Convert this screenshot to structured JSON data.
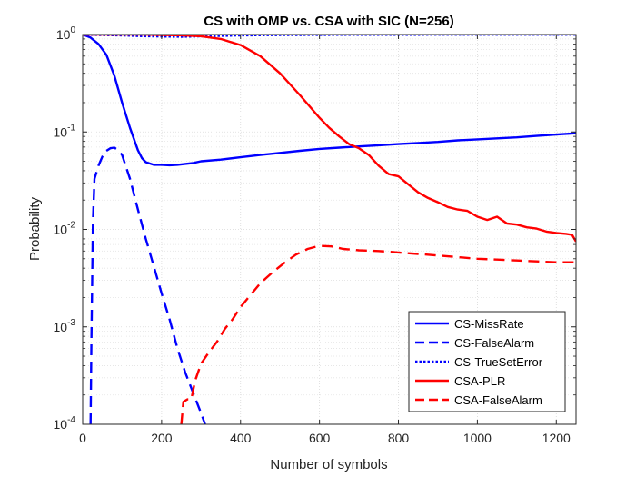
{
  "chart_data": {
    "type": "line",
    "title": "CS with OMP vs. CSA with SIC (N=256)",
    "xlabel": "Number of symbols",
    "ylabel": "Probability",
    "xlim": [
      0,
      1250
    ],
    "ylim": [
      0.0001,
      1
    ],
    "yscale": "log",
    "grid": true,
    "legend_position": "bottom-right",
    "x_ticks": [
      0,
      200,
      400,
      600,
      800,
      1000,
      1200
    ],
    "y_ticks": [
      {
        "value": 0.0001,
        "base": "10",
        "exp": "-4"
      },
      {
        "value": 0.001,
        "base": "10",
        "exp": "-3"
      },
      {
        "value": 0.01,
        "base": "10",
        "exp": "-2"
      },
      {
        "value": 0.1,
        "base": "10",
        "exp": "-1"
      },
      {
        "value": 1,
        "base": "10",
        "exp": "0"
      }
    ],
    "series": [
      {
        "name": "CS-MissRate",
        "color": "#0000ff",
        "style": "solid",
        "x": [
          0,
          20,
          40,
          60,
          80,
          100,
          120,
          140,
          150,
          160,
          180,
          200,
          220,
          240,
          260,
          280,
          300,
          350,
          400,
          450,
          500,
          550,
          600,
          650,
          700,
          750,
          800,
          850,
          900,
          950,
          1000,
          1050,
          1100,
          1150,
          1200,
          1250
        ],
        "y": [
          1.0,
          0.93,
          0.8,
          0.62,
          0.38,
          0.2,
          0.11,
          0.065,
          0.054,
          0.049,
          0.046,
          0.046,
          0.0455,
          0.046,
          0.047,
          0.048,
          0.05,
          0.052,
          0.055,
          0.058,
          0.061,
          0.064,
          0.067,
          0.069,
          0.071,
          0.073,
          0.075,
          0.077,
          0.079,
          0.082,
          0.084,
          0.086,
          0.088,
          0.091,
          0.094,
          0.097
        ]
      },
      {
        "name": "CS-FalseAlarm",
        "color": "#0000ff",
        "style": "dashed",
        "x": [
          20,
          22,
          26,
          30,
          40,
          50,
          60,
          70,
          80,
          90,
          100,
          120,
          140,
          160,
          180,
          200,
          220,
          240,
          260,
          280,
          300,
          310
        ],
        "y": [
          0.0001,
          0.0007,
          0.012,
          0.033,
          0.045,
          0.056,
          0.064,
          0.068,
          0.069,
          0.065,
          0.058,
          0.033,
          0.016,
          0.008,
          0.0042,
          0.0022,
          0.0012,
          0.0006,
          0.00034,
          0.00021,
          0.00013,
          0.0001
        ]
      },
      {
        "name": "CS-TrueSetError",
        "color": "#0000ff",
        "style": "dotted",
        "x": [
          0,
          50,
          100,
          150,
          200,
          250,
          300,
          350,
          400,
          450,
          500,
          600,
          700,
          800,
          900,
          1000,
          1100,
          1200,
          1250
        ],
        "y": [
          1.0,
          0.99,
          0.98,
          0.965,
          0.955,
          0.95,
          0.96,
          0.97,
          0.98,
          0.985,
          0.99,
          0.993,
          0.995,
          0.996,
          0.997,
          0.998,
          0.998,
          0.998,
          0.998
        ]
      },
      {
        "name": "CSA-PLR",
        "color": "#ff0000",
        "style": "solid",
        "x": [
          0,
          100,
          150,
          200,
          250,
          300,
          350,
          400,
          450,
          500,
          550,
          600,
          625,
          650,
          675,
          700,
          725,
          750,
          775,
          800,
          825,
          850,
          875,
          900,
          925,
          950,
          975,
          1000,
          1025,
          1050,
          1075,
          1100,
          1125,
          1150,
          1175,
          1200,
          1225,
          1240,
          1250
        ],
        "y": [
          1.0,
          1.0,
          1.0,
          0.99,
          0.98,
          0.96,
          0.9,
          0.78,
          0.6,
          0.4,
          0.24,
          0.14,
          0.11,
          0.09,
          0.075,
          0.068,
          0.058,
          0.045,
          0.037,
          0.035,
          0.029,
          0.024,
          0.021,
          0.019,
          0.017,
          0.016,
          0.0155,
          0.0135,
          0.0125,
          0.0135,
          0.0115,
          0.0112,
          0.0105,
          0.0102,
          0.0095,
          0.0092,
          0.009,
          0.0088,
          0.0075
        ]
      },
      {
        "name": "CSA-FalseAlarm",
        "color": "#ff0000",
        "style": "dashed",
        "x": [
          250,
          255,
          265,
          275,
          285,
          300,
          320,
          340,
          360,
          380,
          400,
          420,
          450,
          480,
          510,
          540,
          570,
          600,
          630,
          660,
          700,
          750,
          800,
          850,
          900,
          950,
          1000,
          1050,
          1100,
          1150,
          1200,
          1250
        ],
        "y": [
          0.0001,
          0.00017,
          0.00018,
          0.00018,
          0.00028,
          0.00042,
          0.00055,
          0.0007,
          0.00095,
          0.0012,
          0.0016,
          0.002,
          0.0028,
          0.0036,
          0.0045,
          0.0055,
          0.0063,
          0.0068,
          0.0067,
          0.0063,
          0.0061,
          0.006,
          0.0058,
          0.0056,
          0.0054,
          0.0052,
          0.005,
          0.0049,
          0.0048,
          0.0047,
          0.0046,
          0.0046
        ]
      }
    ]
  }
}
